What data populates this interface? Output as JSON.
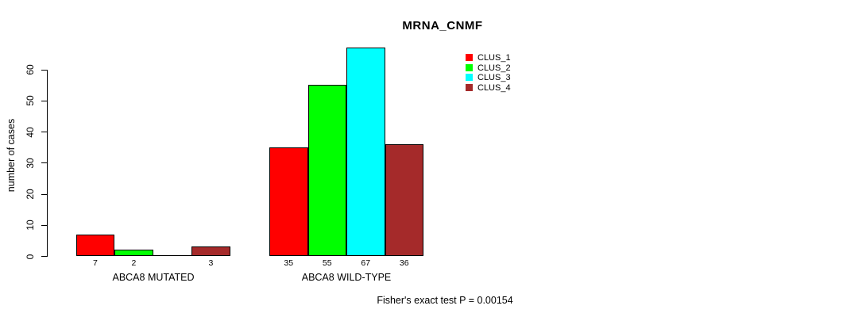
{
  "chart_data": {
    "type": "bar",
    "title": "MRNA_CNMF",
    "ylabel": "number of cases",
    "ylim": [
      0,
      60
    ],
    "yticks": [
      0,
      10,
      20,
      30,
      40,
      50,
      60
    ],
    "categories": [
      "ABCA8 MUTATED",
      "ABCA8 WILD-TYPE"
    ],
    "series": [
      {
        "name": "CLUS_1",
        "color": "#FF0000",
        "values": [
          7,
          35
        ]
      },
      {
        "name": "CLUS_2",
        "color": "#00FF00",
        "values": [
          2,
          55
        ]
      },
      {
        "name": "CLUS_3",
        "color": "#00FFFF",
        "values": [
          0,
          67
        ]
      },
      {
        "name": "CLUS_4",
        "color": "#A52A2A",
        "values": [
          3,
          36
        ]
      }
    ],
    "bar_value_labels": {
      "ABCA8 MUTATED": [
        "7",
        "2",
        "",
        "3"
      ],
      "ABCA8 WILD-TYPE": [
        "35",
        "55",
        "67",
        "36"
      ]
    },
    "legend_position": "top-right",
    "grid": false,
    "footnote": "Fisher's exact test P = 0.00154"
  }
}
